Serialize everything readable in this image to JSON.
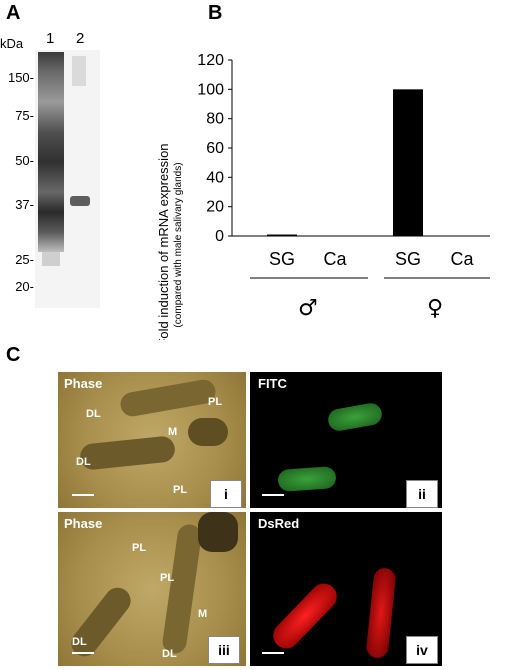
{
  "panel_a": {
    "letter": "A",
    "unit": "kDa",
    "lanes": [
      "1",
      "2"
    ],
    "markers": [
      "150-",
      "75-",
      "50-",
      "37-",
      "25-",
      "20-"
    ]
  },
  "panel_b": {
    "letter": "B",
    "group_male": "♂",
    "group_female": "♀"
  },
  "chart_data": {
    "type": "bar",
    "categories": [
      "SG",
      "Ca",
      "SG",
      "Ca"
    ],
    "groups": [
      "♂",
      "♂",
      "♀",
      "♀"
    ],
    "values": [
      1,
      0,
      100,
      0
    ],
    "ylabel": "Fold induction of mRNA expression",
    "ylabel_sub": "(compared with male salivary glands)",
    "ylim": [
      0,
      120
    ],
    "yticks": [
      "0",
      "20",
      "40",
      "60",
      "80",
      "100",
      "120"
    ],
    "grid": false,
    "bar_color": "#000000"
  },
  "panel_c": {
    "letter": "C",
    "images": [
      {
        "label": "Phase",
        "roman": "i",
        "tags": [
          "DL",
          "PL",
          "M",
          "DL",
          "PL"
        ]
      },
      {
        "label": "FITC",
        "roman": "ii",
        "tags": []
      },
      {
        "label": "Phase",
        "roman": "iii",
        "tags": [
          "PL",
          "PL",
          "M",
          "DL",
          "DL"
        ]
      },
      {
        "label": "DsRed",
        "roman": "iv",
        "tags": []
      }
    ]
  }
}
